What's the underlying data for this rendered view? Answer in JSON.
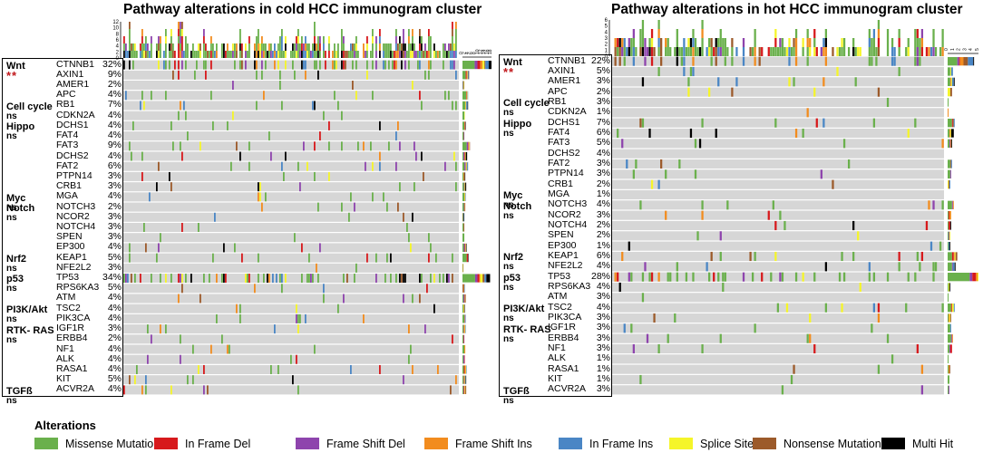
{
  "colors": {
    "missense": "#6ab04c",
    "inframe_del": "#d7191c",
    "frameshift_del": "#8e44ad",
    "frameshift_ins": "#f28c1e",
    "inframe_ins": "#4a86c5",
    "splice": "#f5f529",
    "nonsense": "#9c5a2a",
    "multi": "#000000",
    "empty": "#d6d6d6"
  },
  "legend": {
    "title": "Alterations",
    "items": [
      {
        "key": "missense",
        "label": "Missense Mutation"
      },
      {
        "key": "inframe_del",
        "label": "In Frame Del"
      },
      {
        "key": "frameshift_del",
        "label": "Frame Shift Del"
      },
      {
        "key": "frameshift_ins",
        "label": "Frame Shift Ins"
      },
      {
        "key": "inframe_ins",
        "label": "In Frame Ins"
      },
      {
        "key": "splice",
        "label": "Splice Site"
      },
      {
        "key": "nonsense",
        "label": "Nonsense Mutation"
      },
      {
        "key": "multi",
        "label": "Multi Hit"
      }
    ]
  },
  "chart_data": [
    {
      "type": "oncoplot",
      "id": "cold",
      "title": "Pathway  alterations in cold HCC immunogram cluster",
      "top_axis_ticks": [
        "12",
        "10",
        "8",
        "6",
        "4",
        "2",
        "0"
      ],
      "side_axis_ticks": [
        "0",
        "2",
        "4",
        "6",
        "8",
        "10",
        "12",
        "14",
        "16",
        "18"
      ],
      "pathways": [
        {
          "name": "Wnt",
          "sig": "**",
          "genes": [
            {
              "gene": "CTNNB1",
              "pct": "32%"
            },
            {
              "gene": "AXIN1",
              "pct": "9%"
            },
            {
              "gene": "AMER1",
              "pct": "2%"
            },
            {
              "gene": "APC",
              "pct": "4%"
            }
          ]
        },
        {
          "name": "Cell cycle",
          "sig": "ns",
          "genes": [
            {
              "gene": "RB1",
              "pct": "7%"
            },
            {
              "gene": "CDKN2A",
              "pct": "4%"
            }
          ]
        },
        {
          "name": "Hippo",
          "sig": "ns",
          "genes": [
            {
              "gene": "DCHS1",
              "pct": "4%"
            },
            {
              "gene": "FAT4",
              "pct": "4%"
            },
            {
              "gene": "FAT3",
              "pct": "9%"
            },
            {
              "gene": "DCHS2",
              "pct": "4%"
            },
            {
              "gene": "FAT2",
              "pct": "6%"
            },
            {
              "gene": "PTPN14",
              "pct": "3%"
            },
            {
              "gene": "CRB1",
              "pct": "3%"
            }
          ]
        },
        {
          "name": "Myc",
          "sig": "ns",
          "genes": [
            {
              "gene": "MGA",
              "pct": "4%"
            }
          ]
        },
        {
          "name": "Notch",
          "sig": "ns",
          "genes": [
            {
              "gene": "NOTCH3",
              "pct": "2%"
            },
            {
              "gene": "NCOR2",
              "pct": "3%"
            },
            {
              "gene": "NOTCH4",
              "pct": "3%"
            },
            {
              "gene": "SPEN",
              "pct": "3%"
            },
            {
              "gene": "EP300",
              "pct": "4%"
            }
          ]
        },
        {
          "name": "Nrf2",
          "sig": "ns",
          "genes": [
            {
              "gene": "KEAP1",
              "pct": "5%"
            },
            {
              "gene": "NFE2L2",
              "pct": "3%"
            }
          ]
        },
        {
          "name": "p53",
          "sig": "ns",
          "genes": [
            {
              "gene": "TP53",
              "pct": "34%"
            },
            {
              "gene": "RPS6KA3",
              "pct": "5%"
            },
            {
              "gene": "ATM",
              "pct": "4%"
            }
          ]
        },
        {
          "name": "PI3K/Akt",
          "sig": "ns",
          "genes": [
            {
              "gene": "TSC2",
              "pct": "4%"
            },
            {
              "gene": "PIK3CA",
              "pct": "4%"
            }
          ]
        },
        {
          "name": "RTK- RAS",
          "sig": "ns",
          "genes": [
            {
              "gene": "IGF1R",
              "pct": "3%"
            },
            {
              "gene": "ERBB4",
              "pct": "2%"
            },
            {
              "gene": "NF1",
              "pct": "4%"
            },
            {
              "gene": "ALK",
              "pct": "4%"
            },
            {
              "gene": "RASA1",
              "pct": "4%"
            },
            {
              "gene": "KIT",
              "pct": "5%"
            }
          ]
        },
        {
          "name": "TGFß",
          "sig": "ns",
          "genes": [
            {
              "gene": "ACVR2A",
              "pct": "4%"
            }
          ]
        }
      ]
    },
    {
      "type": "oncoplot",
      "id": "hot",
      "title": "Pathway  alterations in hot HCC immunogram cluster",
      "top_axis_ticks": [
        "6",
        "5",
        "4",
        "3",
        "2",
        "1",
        "0"
      ],
      "side_axis_ticks": [
        "0",
        "1",
        "2",
        "3",
        "4",
        "5"
      ],
      "pathways": [
        {
          "name": "Wnt",
          "sig": "**",
          "genes": [
            {
              "gene": "CTNNB1",
              "pct": "22%"
            },
            {
              "gene": "AXIN1",
              "pct": "5%"
            },
            {
              "gene": "AMER1",
              "pct": "3%"
            },
            {
              "gene": "APC",
              "pct": "2%"
            }
          ]
        },
        {
          "name": "Cell cycle",
          "sig": "ns",
          "genes": [
            {
              "gene": "RB1",
              "pct": "3%"
            },
            {
              "gene": "CDKN2A",
              "pct": "1%"
            }
          ]
        },
        {
          "name": "Hippo",
          "sig": "ns",
          "genes": [
            {
              "gene": "DCHS1",
              "pct": "7%"
            },
            {
              "gene": "FAT4",
              "pct": "6%"
            },
            {
              "gene": "FAT3",
              "pct": "5%"
            },
            {
              "gene": "DCHS2",
              "pct": "4%"
            },
            {
              "gene": "FAT2",
              "pct": "3%"
            },
            {
              "gene": "PTPN14",
              "pct": "3%"
            },
            {
              "gene": "CRB1",
              "pct": "2%"
            }
          ]
        },
        {
          "name": "Myc",
          "sig": "ns",
          "genes": [
            {
              "gene": "MGA",
              "pct": "1%"
            }
          ]
        },
        {
          "name": "Notch",
          "sig": "ns",
          "genes": [
            {
              "gene": "NOTCH3",
              "pct": "4%"
            },
            {
              "gene": "NCOR2",
              "pct": "3%"
            },
            {
              "gene": "NOTCH4",
              "pct": "2%"
            },
            {
              "gene": "SPEN",
              "pct": "2%"
            },
            {
              "gene": "EP300",
              "pct": "1%"
            }
          ]
        },
        {
          "name": "Nrf2",
          "sig": "ns",
          "genes": [
            {
              "gene": "KEAP1",
              "pct": "6%"
            },
            {
              "gene": "NFE2L2",
              "pct": "4%"
            }
          ]
        },
        {
          "name": "p53",
          "sig": "ns",
          "genes": [
            {
              "gene": "TP53",
              "pct": "28%"
            },
            {
              "gene": "RPS6KA3",
              "pct": "4%"
            },
            {
              "gene": "ATM",
              "pct": "3%"
            }
          ]
        },
        {
          "name": "PI3K/Akt",
          "sig": "ns",
          "genes": [
            {
              "gene": "TSC2",
              "pct": "4%"
            },
            {
              "gene": "PIK3CA",
              "pct": "3%"
            }
          ]
        },
        {
          "name": "RTK- RAS",
          "sig": "ns",
          "genes": [
            {
              "gene": "IGF1R",
              "pct": "3%"
            },
            {
              "gene": "ERBB4",
              "pct": "3%"
            },
            {
              "gene": "NF1",
              "pct": "3%"
            },
            {
              "gene": "ALK",
              "pct": "1%"
            },
            {
              "gene": "RASA1",
              "pct": "1%"
            },
            {
              "gene": "KIT",
              "pct": "1%"
            }
          ]
        },
        {
          "name": "TGFß",
          "sig": "ns",
          "genes": [
            {
              "gene": "ACVR2A",
              "pct": "3%"
            }
          ]
        }
      ]
    }
  ]
}
